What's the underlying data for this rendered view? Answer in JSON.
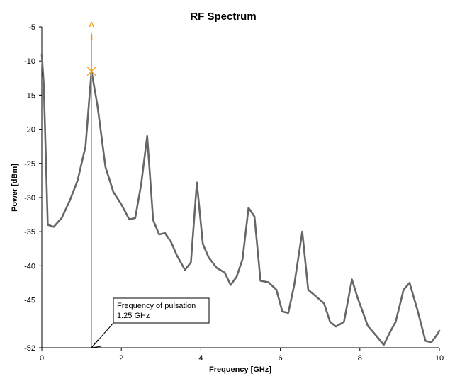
{
  "chart_data": {
    "type": "line",
    "title": "RF Spectrum",
    "xlabel": "Frequency [GHz]",
    "ylabel": "Power [dBm]",
    "xlim": [
      0,
      10
    ],
    "ylim": [
      -52,
      -5
    ],
    "x_ticks": [
      0,
      2,
      4,
      6,
      8,
      10
    ],
    "y_ticks": [
      -5,
      -10,
      -15,
      -20,
      -25,
      -30,
      -35,
      -40,
      -45,
      -52
    ],
    "grid": false,
    "colors": {
      "series": "#666666",
      "marker": "#f39c12"
    },
    "series": [
      {
        "x": [
          0.0,
          0.05,
          0.15,
          0.3,
          0.5,
          0.7,
          0.9,
          1.1,
          1.25,
          1.4,
          1.6,
          1.8,
          2.0,
          2.2,
          2.35,
          2.5,
          2.65,
          2.8,
          2.95,
          3.1,
          3.25,
          3.4,
          3.6,
          3.75,
          3.9,
          4.05,
          4.2,
          4.4,
          4.6,
          4.75,
          4.9,
          5.05,
          5.2,
          5.35,
          5.5,
          5.7,
          5.9,
          6.05,
          6.2,
          6.35,
          6.55,
          6.7,
          6.9,
          7.1,
          7.25,
          7.4,
          7.6,
          7.8,
          7.95,
          8.2,
          8.45,
          8.6,
          8.75,
          8.9,
          9.1,
          9.25,
          9.45,
          9.65,
          9.8,
          9.95,
          10.0
        ],
        "y": [
          -9.0,
          -13.5,
          -34.0,
          -34.3,
          -33.0,
          -30.5,
          -27.5,
          -22.5,
          -11.5,
          -16.5,
          -25.5,
          -29.2,
          -31.0,
          -33.2,
          -33.0,
          -28.0,
          -21.0,
          -33.3,
          -35.4,
          -35.2,
          -36.5,
          -38.5,
          -40.6,
          -39.5,
          -27.8,
          -36.8,
          -38.8,
          -40.3,
          -41.0,
          -42.8,
          -41.6,
          -39.0,
          -31.5,
          -32.8,
          -42.2,
          -42.4,
          -43.5,
          -46.7,
          -46.9,
          -42.8,
          -35.0,
          -43.5,
          -44.5,
          -45.5,
          -48.2,
          -48.9,
          -48.2,
          -42.0,
          -44.8,
          -48.8,
          -50.5,
          -51.6,
          -49.8,
          -48.2,
          -43.5,
          -42.5,
          -46.5,
          -51.0,
          -51.2,
          -50.0,
          -49.5
        ]
      }
    ],
    "marker": {
      "label": "A",
      "x": 1.25,
      "y": -11.5
    },
    "annotations": [
      {
        "line1": "Frequency of pulsation",
        "line2": "1.25 GHz",
        "x": 1.25,
        "y": -52
      }
    ]
  }
}
